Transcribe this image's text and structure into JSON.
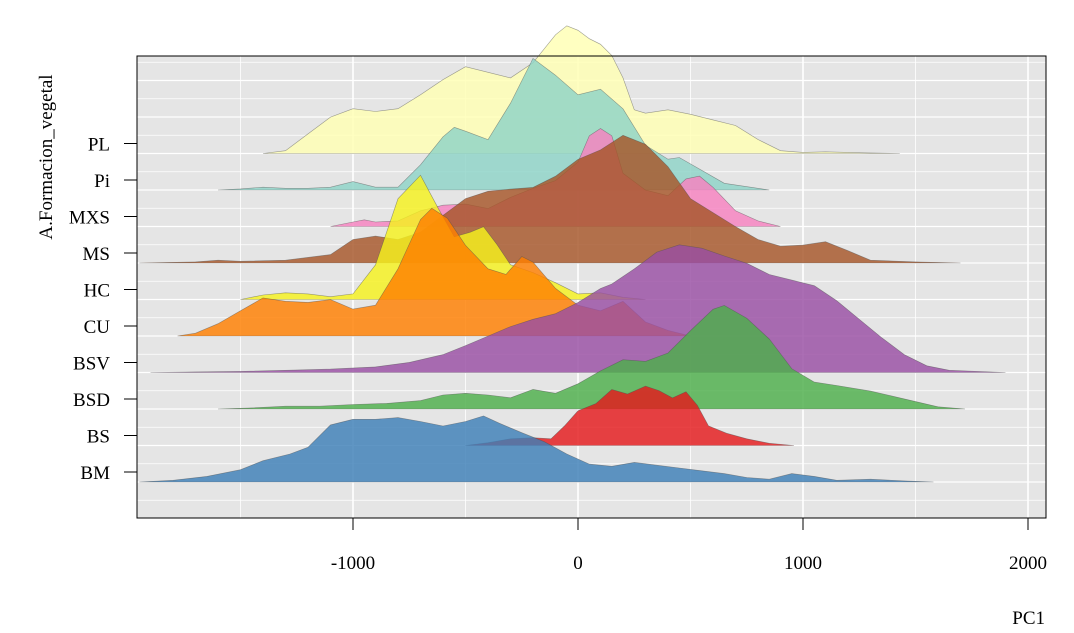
{
  "chart_data": {
    "type": "area",
    "subtype": "ridgeline-density",
    "title": "",
    "xlabel": "PC1",
    "ylabel": "A.Formacion_vegetal",
    "xlim": [
      -1960,
      2080
    ],
    "x_ticks": [
      -1000,
      0,
      1000,
      2000
    ],
    "x_tick_labels": [
      "-1000",
      "0",
      "1000",
      "2000"
    ],
    "grid": true,
    "background": "#e5e5e5",
    "series": [
      {
        "name": "BM",
        "color": "#3d7fb7",
        "points": [
          [
            -1950,
            0
          ],
          [
            -1800,
            0.03
          ],
          [
            -1650,
            0.1
          ],
          [
            -1500,
            0.22
          ],
          [
            -1400,
            0.38
          ],
          [
            -1280,
            0.5
          ],
          [
            -1200,
            0.62
          ],
          [
            -1100,
            1.02
          ],
          [
            -1000,
            1.12
          ],
          [
            -900,
            1.12
          ],
          [
            -800,
            1.15
          ],
          [
            -700,
            1.08
          ],
          [
            -600,
            1.0
          ],
          [
            -500,
            1.08
          ],
          [
            -420,
            1.18
          ],
          [
            -350,
            1.05
          ],
          [
            -250,
            0.88
          ],
          [
            -150,
            0.72
          ],
          [
            -50,
            0.5
          ],
          [
            50,
            0.32
          ],
          [
            150,
            0.28
          ],
          [
            250,
            0.35
          ],
          [
            350,
            0.3
          ],
          [
            450,
            0.25
          ],
          [
            550,
            0.2
          ],
          [
            650,
            0.15
          ],
          [
            750,
            0.08
          ],
          [
            850,
            0.05
          ],
          [
            950,
            0.15
          ],
          [
            1050,
            0.1
          ],
          [
            1150,
            0.03
          ],
          [
            1300,
            0.05
          ],
          [
            1450,
            0.02
          ],
          [
            1580,
            0
          ]
        ]
      },
      {
        "name": "BS",
        "color": "#e41a1c",
        "points": [
          [
            -500,
            0
          ],
          [
            -400,
            0.05
          ],
          [
            -300,
            0.12
          ],
          [
            -200,
            0.14
          ],
          [
            -120,
            0.12
          ],
          [
            -60,
            0.35
          ],
          [
            0,
            0.62
          ],
          [
            80,
            0.75
          ],
          [
            150,
            1.0
          ],
          [
            220,
            0.92
          ],
          [
            300,
            1.06
          ],
          [
            360,
            0.98
          ],
          [
            420,
            0.85
          ],
          [
            480,
            0.96
          ],
          [
            530,
            0.72
          ],
          [
            580,
            0.35
          ],
          [
            660,
            0.22
          ],
          [
            750,
            0.12
          ],
          [
            850,
            0.04
          ],
          [
            960,
            0
          ]
        ]
      },
      {
        "name": "BSD",
        "color": "#4daf4a",
        "points": [
          [
            -1600,
            0
          ],
          [
            -1450,
            0.02
          ],
          [
            -1300,
            0.05
          ],
          [
            -1150,
            0.05
          ],
          [
            -1000,
            0.08
          ],
          [
            -850,
            0.1
          ],
          [
            -700,
            0.15
          ],
          [
            -600,
            0.25
          ],
          [
            -500,
            0.28
          ],
          [
            -400,
            0.25
          ],
          [
            -300,
            0.2
          ],
          [
            -200,
            0.35
          ],
          [
            -100,
            0.28
          ],
          [
            0,
            0.45
          ],
          [
            100,
            0.68
          ],
          [
            200,
            0.88
          ],
          [
            300,
            0.85
          ],
          [
            400,
            1.0
          ],
          [
            500,
            1.4
          ],
          [
            600,
            1.78
          ],
          [
            650,
            1.85
          ],
          [
            750,
            1.62
          ],
          [
            850,
            1.25
          ],
          [
            950,
            0.72
          ],
          [
            1050,
            0.48
          ],
          [
            1150,
            0.42
          ],
          [
            1300,
            0.32
          ],
          [
            1450,
            0.18
          ],
          [
            1600,
            0.04
          ],
          [
            1720,
            0
          ]
        ]
      },
      {
        "name": "BSV",
        "color": "#984ea3",
        "points": [
          [
            -1900,
            0
          ],
          [
            -1700,
            0.01
          ],
          [
            -1500,
            0.02
          ],
          [
            -1300,
            0.04
          ],
          [
            -1100,
            0.06
          ],
          [
            -900,
            0.1
          ],
          [
            -750,
            0.18
          ],
          [
            -600,
            0.32
          ],
          [
            -500,
            0.48
          ],
          [
            -400,
            0.65
          ],
          [
            -300,
            0.82
          ],
          [
            -200,
            0.95
          ],
          [
            -100,
            1.05
          ],
          [
            0,
            1.25
          ],
          [
            100,
            1.5
          ],
          [
            150,
            1.58
          ],
          [
            250,
            1.85
          ],
          [
            350,
            2.15
          ],
          [
            450,
            2.28
          ],
          [
            550,
            2.22
          ],
          [
            650,
            2.08
          ],
          [
            750,
            1.95
          ],
          [
            850,
            1.75
          ],
          [
            950,
            1.65
          ],
          [
            1050,
            1.55
          ],
          [
            1150,
            1.28
          ],
          [
            1250,
            0.95
          ],
          [
            1350,
            0.62
          ],
          [
            1450,
            0.32
          ],
          [
            1550,
            0.12
          ],
          [
            1650,
            0.04
          ],
          [
            1900,
            0
          ]
        ]
      },
      {
        "name": "CU",
        "color": "#ff7f00",
        "points": [
          [
            -1780,
            0
          ],
          [
            -1700,
            0.05
          ],
          [
            -1600,
            0.22
          ],
          [
            -1500,
            0.45
          ],
          [
            -1400,
            0.68
          ],
          [
            -1300,
            0.62
          ],
          [
            -1200,
            0.6
          ],
          [
            -1100,
            0.65
          ],
          [
            -1000,
            0.48
          ],
          [
            -900,
            0.55
          ],
          [
            -800,
            1.2
          ],
          [
            -700,
            2.08
          ],
          [
            -650,
            2.28
          ],
          [
            -580,
            2.1
          ],
          [
            -500,
            1.62
          ],
          [
            -400,
            1.2
          ],
          [
            -320,
            1.1
          ],
          [
            -250,
            1.42
          ],
          [
            -200,
            1.32
          ],
          [
            -100,
            0.85
          ],
          [
            0,
            0.55
          ],
          [
            100,
            0.45
          ],
          [
            200,
            0.62
          ],
          [
            300,
            0.25
          ],
          [
            400,
            0.1
          ],
          [
            500,
            0
          ]
        ]
      },
      {
        "name": "HC",
        "color": "#f5f11d",
        "points": [
          [
            -1500,
            0
          ],
          [
            -1400,
            0.08
          ],
          [
            -1300,
            0.12
          ],
          [
            -1200,
            0.1
          ],
          [
            -1100,
            0.05
          ],
          [
            -1000,
            0.1
          ],
          [
            -900,
            0.62
          ],
          [
            -800,
            1.8
          ],
          [
            -700,
            2.22
          ],
          [
            -620,
            1.62
          ],
          [
            -550,
            1.12
          ],
          [
            -480,
            1.2
          ],
          [
            -420,
            1.3
          ],
          [
            -360,
            0.98
          ],
          [
            -300,
            0.62
          ],
          [
            -200,
            0.48
          ],
          [
            -100,
            0.3
          ],
          [
            0,
            0.1
          ],
          [
            100,
            0.12
          ],
          [
            200,
            0.04
          ],
          [
            300,
            0
          ]
        ]
      },
      {
        "name": "MS",
        "color": "#a65628",
        "points": [
          [
            -1950,
            0
          ],
          [
            -1700,
            0.02
          ],
          [
            -1600,
            0.05
          ],
          [
            -1500,
            0.03
          ],
          [
            -1300,
            0.05
          ],
          [
            -1100,
            0.15
          ],
          [
            -1000,
            0.42
          ],
          [
            -900,
            0.48
          ],
          [
            -800,
            0.42
          ],
          [
            -700,
            0.55
          ],
          [
            -600,
            0.85
          ],
          [
            -500,
            1.15
          ],
          [
            -400,
            1.28
          ],
          [
            -300,
            1.32
          ],
          [
            -200,
            1.35
          ],
          [
            -100,
            1.55
          ],
          [
            0,
            1.85
          ],
          [
            100,
            2.02
          ],
          [
            200,
            2.28
          ],
          [
            300,
            2.12
          ],
          [
            400,
            1.72
          ],
          [
            500,
            1.15
          ],
          [
            600,
            0.9
          ],
          [
            700,
            0.65
          ],
          [
            800,
            0.42
          ],
          [
            900,
            0.3
          ],
          [
            1000,
            0.32
          ],
          [
            1100,
            0.38
          ],
          [
            1200,
            0.22
          ],
          [
            1300,
            0.05
          ],
          [
            1500,
            0.02
          ],
          [
            1700,
            0
          ]
        ]
      },
      {
        "name": "MXS",
        "color": "#f781bf",
        "points": [
          [
            -1100,
            0
          ],
          [
            -1000,
            0.08
          ],
          [
            -950,
            0.12
          ],
          [
            -900,
            0.08
          ],
          [
            -800,
            0.1
          ],
          [
            -700,
            0.28
          ],
          [
            -600,
            0.38
          ],
          [
            -500,
            0.4
          ],
          [
            -400,
            0.32
          ],
          [
            -300,
            0.52
          ],
          [
            -200,
            0.68
          ],
          [
            -100,
            0.82
          ],
          [
            0,
            1.15
          ],
          [
            50,
            1.62
          ],
          [
            100,
            1.75
          ],
          [
            150,
            1.62
          ],
          [
            200,
            0.95
          ],
          [
            300,
            0.65
          ],
          [
            400,
            0.55
          ],
          [
            480,
            0.85
          ],
          [
            540,
            0.9
          ],
          [
            600,
            0.7
          ],
          [
            700,
            0.28
          ],
          [
            800,
            0.1
          ],
          [
            900,
            0
          ]
        ]
      },
      {
        "name": "Pi",
        "color": "#8dd3c7",
        "points": [
          [
            -1600,
            0
          ],
          [
            -1500,
            0.02
          ],
          [
            -1400,
            0.05
          ],
          [
            -1300,
            0.03
          ],
          [
            -1200,
            0.03
          ],
          [
            -1100,
            0.05
          ],
          [
            -1000,
            0.15
          ],
          [
            -900,
            0.05
          ],
          [
            -800,
            0.05
          ],
          [
            -700,
            0.45
          ],
          [
            -600,
            0.95
          ],
          [
            -550,
            1.12
          ],
          [
            -500,
            1.05
          ],
          [
            -400,
            0.9
          ],
          [
            -300,
            1.55
          ],
          [
            -200,
            2.35
          ],
          [
            -100,
            2.05
          ],
          [
            0,
            1.7
          ],
          [
            100,
            1.8
          ],
          [
            200,
            1.45
          ],
          [
            300,
            0.8
          ],
          [
            400,
            0.55
          ],
          [
            450,
            0.58
          ],
          [
            550,
            0.35
          ],
          [
            650,
            0.12
          ],
          [
            850,
            0
          ]
        ]
      },
      {
        "name": "PL",
        "color": "#ffffb3",
        "points": [
          [
            -1400,
            0
          ],
          [
            -1300,
            0.05
          ],
          [
            -1200,
            0.35
          ],
          [
            -1100,
            0.65
          ],
          [
            -1000,
            0.8
          ],
          [
            -900,
            0.75
          ],
          [
            -800,
            0.8
          ],
          [
            -700,
            1.05
          ],
          [
            -600,
            1.32
          ],
          [
            -500,
            1.55
          ],
          [
            -400,
            1.45
          ],
          [
            -300,
            1.35
          ],
          [
            -200,
            1.62
          ],
          [
            -100,
            2.12
          ],
          [
            -50,
            2.28
          ],
          [
            0,
            2.2
          ],
          [
            50,
            2.05
          ],
          [
            100,
            1.95
          ],
          [
            150,
            1.75
          ],
          [
            200,
            1.35
          ],
          [
            250,
            0.78
          ],
          [
            300,
            0.72
          ],
          [
            400,
            0.78
          ],
          [
            500,
            0.7
          ],
          [
            600,
            0.6
          ],
          [
            700,
            0.5
          ],
          [
            800,
            0.25
          ],
          [
            900,
            0.05
          ],
          [
            1000,
            0.02
          ],
          [
            1100,
            0.03
          ],
          [
            1200,
            0.02
          ],
          [
            1300,
            0.01
          ],
          [
            1430,
            0
          ]
        ]
      }
    ]
  }
}
